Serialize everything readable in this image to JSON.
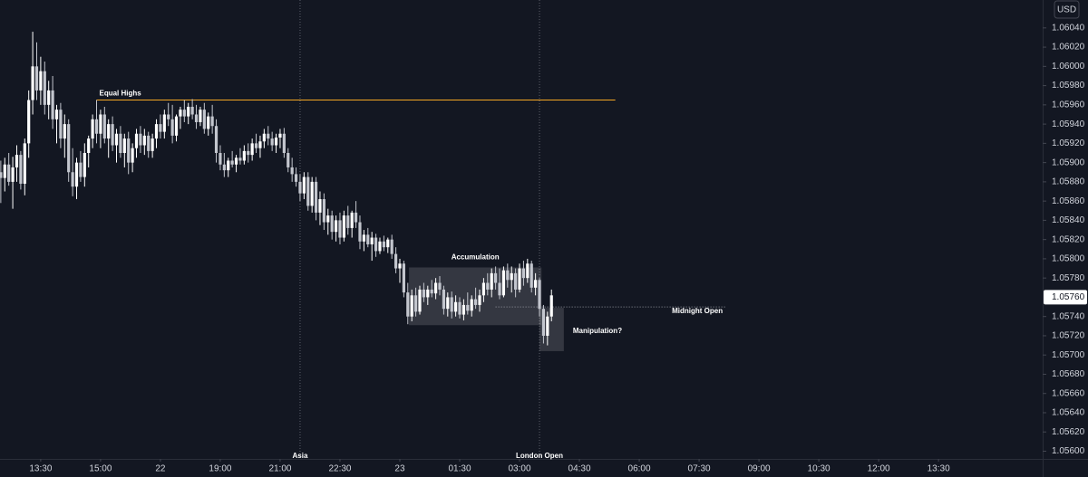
{
  "chart_data": {
    "type": "candlestick",
    "currency": "USD",
    "up_color": "#ffffff",
    "down_color": "#c3c6ce",
    "xlim": [
      -0.2,
      261.1
    ],
    "ylim": [
      1.05592,
      1.06069
    ],
    "xticks": [
      {
        "value": 10,
        "label": "13:30"
      },
      {
        "value": 25,
        "label": "15:00"
      },
      {
        "value": 40,
        "label": "22"
      },
      {
        "value": 55,
        "label": "19:00"
      },
      {
        "value": 70,
        "label": "21:00"
      },
      {
        "value": 85,
        "label": "22:30"
      },
      {
        "value": 100,
        "label": "23"
      },
      {
        "value": 115,
        "label": "01:30"
      },
      {
        "value": 130,
        "label": "03:00"
      },
      {
        "value": 145,
        "label": "04:30"
      },
      {
        "value": 160,
        "label": "06:00"
      },
      {
        "value": 175,
        "label": "07:30"
      },
      {
        "value": 190,
        "label": "09:00"
      },
      {
        "value": 205,
        "label": "10:30"
      },
      {
        "value": 220,
        "label": "12:00"
      },
      {
        "value": 235,
        "label": "13:30"
      }
    ],
    "yticks": [
      {
        "value": 1.0604,
        "label": "1.06040"
      },
      {
        "value": 1.0602,
        "label": "1.06020"
      },
      {
        "value": 1.06,
        "label": "1.06000"
      },
      {
        "value": 1.0598,
        "label": "1.05980"
      },
      {
        "value": 1.0596,
        "label": "1.05960"
      },
      {
        "value": 1.0594,
        "label": "1.05940"
      },
      {
        "value": 1.0592,
        "label": "1.05920"
      },
      {
        "value": 1.059,
        "label": "1.05900"
      },
      {
        "value": 1.0588,
        "label": "1.05880"
      },
      {
        "value": 1.0586,
        "label": "1.05860"
      },
      {
        "value": 1.0584,
        "label": "1.05840"
      },
      {
        "value": 1.0582,
        "label": "1.05820"
      },
      {
        "value": 1.058,
        "label": "1.05800"
      },
      {
        "value": 1.0578,
        "label": "1.05780"
      },
      {
        "value": 1.0574,
        "label": "1.05740"
      },
      {
        "value": 1.0572,
        "label": "1.05720"
      },
      {
        "value": 1.057,
        "label": "1.05700"
      },
      {
        "value": 1.0568,
        "label": "1.05680"
      },
      {
        "value": 1.0566,
        "label": "1.05660"
      },
      {
        "value": 1.0564,
        "label": "1.05640"
      },
      {
        "value": 1.0562,
        "label": "1.05620"
      },
      {
        "value": 1.056,
        "label": "1.05600"
      }
    ],
    "last_price": {
      "value": 1.0576,
      "label": "1.05760"
    },
    "annotations": [
      {
        "text": "Equal Highs",
        "shape": "line",
        "x": [
          24,
          154
        ],
        "y": 1.05965,
        "color": "#f5a623"
      },
      {
        "text": "Asia",
        "shape": "vline",
        "x": 75,
        "color": "#5d606b"
      },
      {
        "text": "London Open",
        "shape": "vline",
        "x": 135,
        "color": "#5d606b"
      },
      {
        "text": "Accumulation",
        "shape": "box",
        "x": [
          102.3,
          135.5
        ],
        "y": [
          1.05731,
          1.05791
        ],
        "color": "#ffffff"
      },
      {
        "text": "Manipulation?",
        "shape": "box",
        "x": [
          135,
          141.1
        ],
        "y": [
          1.05704,
          1.05749
        ],
        "color": "#ffffff"
      },
      {
        "text": "Midnight Open",
        "shape": "dotted-line",
        "x": [
          124,
          181.6
        ],
        "y": 1.0575,
        "color": "#9598a1"
      }
    ],
    "candles": [
      [
        1.0589,
        1.05902,
        1.05858,
        1.05884
      ],
      [
        1.05884,
        1.05905,
        1.0587,
        1.05898
      ],
      [
        1.05898,
        1.0591,
        1.05876,
        1.0588
      ],
      [
        1.0588,
        1.05906,
        1.05852,
        1.05895
      ],
      [
        1.05895,
        1.05918,
        1.0588,
        1.05908
      ],
      [
        1.05908,
        1.05912,
        1.05872,
        1.05878
      ],
      [
        1.05878,
        1.05925,
        1.05866,
        1.0592
      ],
      [
        1.0592,
        1.05975,
        1.05905,
        1.05965
      ],
      [
        1.05965,
        1.06036,
        1.0595,
        1.06
      ],
      [
        1.06,
        1.06025,
        1.05965,
        1.05975
      ],
      [
        1.05975,
        1.0601,
        1.0596,
        1.05995
      ],
      [
        1.05995,
        1.06005,
        1.0595,
        1.0596
      ],
      [
        1.0596,
        1.05985,
        1.05945,
        1.05975
      ],
      [
        1.05975,
        1.0599,
        1.05935,
        1.05945
      ],
      [
        1.05945,
        1.0596,
        1.0592,
        1.05955
      ],
      [
        1.05955,
        1.05962,
        1.05915,
        1.05925
      ],
      [
        1.05925,
        1.0595,
        1.05905,
        1.0594
      ],
      [
        1.0594,
        1.05945,
        1.0588,
        1.0589
      ],
      [
        1.0589,
        1.05915,
        1.05865,
        1.05875
      ],
      [
        1.05875,
        1.05905,
        1.05862,
        1.059
      ],
      [
        1.059,
        1.05912,
        1.0588,
        1.05885
      ],
      [
        1.05885,
        1.0592,
        1.05875,
        1.0591
      ],
      [
        1.0591,
        1.05928,
        1.05895,
        1.05925
      ],
      [
        1.05925,
        1.0595,
        1.05915,
        1.05945
      ],
      [
        1.05945,
        1.05965,
        1.0592,
        1.0593
      ],
      [
        1.0593,
        1.05955,
        1.05915,
        1.0595
      ],
      [
        1.0595,
        1.05958,
        1.0592,
        1.05925
      ],
      [
        1.05925,
        1.05945,
        1.05905,
        1.0594
      ],
      [
        1.0594,
        1.05948,
        1.05912,
        1.05918
      ],
      [
        1.05918,
        1.05935,
        1.059,
        1.0593
      ],
      [
        1.0593,
        1.05938,
        1.05905,
        1.0591
      ],
      [
        1.0591,
        1.0593,
        1.05895,
        1.05925
      ],
      [
        1.05925,
        1.05932,
        1.05888,
        1.059
      ],
      [
        1.059,
        1.0592,
        1.0589,
        1.05915
      ],
      [
        1.05915,
        1.05935,
        1.05905,
        1.0593
      ],
      [
        1.0593,
        1.05938,
        1.0591,
        1.05918
      ],
      [
        1.05918,
        1.05935,
        1.05908,
        1.05928
      ],
      [
        1.05928,
        1.05932,
        1.05905,
        1.05912
      ],
      [
        1.05912,
        1.0593,
        1.05905,
        1.05925
      ],
      [
        1.05925,
        1.05945,
        1.05915,
        1.0594
      ],
      [
        1.0594,
        1.0595,
        1.05925,
        1.05932
      ],
      [
        1.05932,
        1.05955,
        1.05925,
        1.0595
      ],
      [
        1.0595,
        1.05962,
        1.05938,
        1.05945
      ],
      [
        1.05945,
        1.0596,
        1.0592,
        1.05928
      ],
      [
        1.05928,
        1.0595,
        1.05922,
        1.05948
      ],
      [
        1.05948,
        1.05958,
        1.05935,
        1.05955
      ],
      [
        1.05955,
        1.05965,
        1.05942,
        1.05948
      ],
      [
        1.05948,
        1.05962,
        1.0594,
        1.05958
      ],
      [
        1.05958,
        1.05966,
        1.05945,
        1.0595
      ],
      [
        1.0595,
        1.0596,
        1.05935,
        1.05942
      ],
      [
        1.05942,
        1.05958,
        1.05938,
        1.05955
      ],
      [
        1.05955,
        1.05962,
        1.0593,
        1.05935
      ],
      [
        1.05935,
        1.05952,
        1.05928,
        1.05948
      ],
      [
        1.05948,
        1.0596,
        1.0593,
        1.05938
      ],
      [
        1.05938,
        1.05945,
        1.059,
        1.0591
      ],
      [
        1.0591,
        1.05918,
        1.05892,
        1.05898
      ],
      [
        1.05898,
        1.0591,
        1.05885,
        1.05892
      ],
      [
        1.05892,
        1.05905,
        1.05885,
        1.05902
      ],
      [
        1.05902,
        1.05912,
        1.05895,
        1.05898
      ],
      [
        1.05898,
        1.05908,
        1.0589,
        1.05905
      ],
      [
        1.05905,
        1.05915,
        1.05898,
        1.05902
      ],
      [
        1.05902,
        1.05918,
        1.05898,
        1.05912
      ],
      [
        1.05912,
        1.0592,
        1.059,
        1.05908
      ],
      [
        1.05908,
        1.05925,
        1.05902,
        1.0592
      ],
      [
        1.0592,
        1.0593,
        1.0591,
        1.05915
      ],
      [
        1.05915,
        1.05928,
        1.05905,
        1.05922
      ],
      [
        1.05922,
        1.05935,
        1.05915,
        1.0593
      ],
      [
        1.0593,
        1.05938,
        1.05918,
        1.05925
      ],
      [
        1.05925,
        1.05932,
        1.05912,
        1.05918
      ],
      [
        1.05918,
        1.0593,
        1.0591,
        1.05926
      ],
      [
        1.05926,
        1.05935,
        1.05915,
        1.0593
      ],
      [
        1.0593,
        1.05936,
        1.05905,
        1.0591
      ],
      [
        1.0591,
        1.05915,
        1.0589,
        1.05895
      ],
      [
        1.05895,
        1.05905,
        1.0588,
        1.05888
      ],
      [
        1.05888,
        1.05895,
        1.05875,
        1.0588
      ],
      [
        1.0588,
        1.05888,
        1.0586,
        1.05868
      ],
      [
        1.05868,
        1.0589,
        1.05862,
        1.05885
      ],
      [
        1.05885,
        1.0589,
        1.0585,
        1.05855
      ],
      [
        1.05855,
        1.05885,
        1.05848,
        1.0588
      ],
      [
        1.0588,
        1.05885,
        1.0584,
        1.05848
      ],
      [
        1.05848,
        1.0587,
        1.05835,
        1.05862
      ],
      [
        1.05862,
        1.05868,
        1.0583,
        1.05838
      ],
      [
        1.05838,
        1.05852,
        1.05825,
        1.05845
      ],
      [
        1.05845,
        1.0585,
        1.0582,
        1.05828
      ],
      [
        1.05828,
        1.05845,
        1.05818,
        1.0584
      ],
      [
        1.0584,
        1.05848,
        1.05815,
        1.05822
      ],
      [
        1.05822,
        1.0585,
        1.05818,
        1.05845
      ],
      [
        1.05845,
        1.05855,
        1.05825,
        1.05832
      ],
      [
        1.05832,
        1.0585,
        1.05822,
        1.05848
      ],
      [
        1.05848,
        1.0586,
        1.05832,
        1.05838
      ],
      [
        1.05838,
        1.05845,
        1.0581,
        1.05818
      ],
      [
        1.05818,
        1.0583,
        1.05808,
        1.05825
      ],
      [
        1.05825,
        1.05832,
        1.05812,
        1.05815
      ],
      [
        1.05815,
        1.05828,
        1.05798,
        1.05822
      ],
      [
        1.05822,
        1.05826,
        1.05802,
        1.05808
      ],
      [
        1.05808,
        1.05822,
        1.05805,
        1.05818
      ],
      [
        1.05818,
        1.05824,
        1.05808,
        1.05812
      ],
      [
        1.05812,
        1.05822,
        1.05806,
        1.0582
      ],
      [
        1.0582,
        1.05825,
        1.058,
        1.05805
      ],
      [
        1.05805,
        1.05812,
        1.05785,
        1.0579
      ],
      [
        1.0579,
        1.058,
        1.05775,
        1.05795
      ],
      [
        1.05795,
        1.05798,
        1.0576,
        1.05765
      ],
      [
        1.05765,
        1.05775,
        1.05732,
        1.0574
      ],
      [
        1.0574,
        1.05768,
        1.05735,
        1.05762
      ],
      [
        1.05762,
        1.0577,
        1.0574,
        1.05745
      ],
      [
        1.05745,
        1.05772,
        1.05742,
        1.05768
      ],
      [
        1.05768,
        1.05775,
        1.05755,
        1.0576
      ],
      [
        1.0576,
        1.05772,
        1.05752,
        1.05768
      ],
      [
        1.05768,
        1.05778,
        1.0576,
        1.05764
      ],
      [
        1.05764,
        1.0578,
        1.05758,
        1.05775
      ],
      [
        1.05775,
        1.05782,
        1.05762,
        1.05768
      ],
      [
        1.05768,
        1.05772,
        1.05742,
        1.05748
      ],
      [
        1.05748,
        1.05765,
        1.0574,
        1.0576
      ],
      [
        1.0576,
        1.05766,
        1.05738,
        1.05745
      ],
      [
        1.05745,
        1.05762,
        1.0574,
        1.05755
      ],
      [
        1.05755,
        1.0576,
        1.05738,
        1.05742
      ],
      [
        1.05742,
        1.05758,
        1.05736,
        1.05752
      ],
      [
        1.05752,
        1.05765,
        1.05742,
        1.05746
      ],
      [
        1.05746,
        1.05762,
        1.0574,
        1.05758
      ],
      [
        1.05758,
        1.0577,
        1.05748,
        1.05752
      ],
      [
        1.05752,
        1.05768,
        1.05745,
        1.05762
      ],
      [
        1.05762,
        1.0578,
        1.05755,
        1.05775
      ],
      [
        1.05775,
        1.05785,
        1.05762,
        1.05768
      ],
      [
        1.05768,
        1.0579,
        1.0576,
        1.05785
      ],
      [
        1.05785,
        1.05792,
        1.05768,
        1.05775
      ],
      [
        1.05775,
        1.0579,
        1.05758,
        1.05762
      ],
      [
        1.05762,
        1.05792,
        1.0576,
        1.05788
      ],
      [
        1.05788,
        1.05795,
        1.0577,
        1.05778
      ],
      [
        1.05778,
        1.05792,
        1.05765,
        1.05785
      ],
      [
        1.05785,
        1.0579,
        1.0576,
        1.05768
      ],
      [
        1.05768,
        1.05795,
        1.05765,
        1.0579
      ],
      [
        1.0579,
        1.05798,
        1.05772,
        1.0578
      ],
      [
        1.0578,
        1.058,
        1.05775,
        1.05795
      ],
      [
        1.05795,
        1.05798,
        1.05765,
        1.0577
      ],
      [
        1.0577,
        1.05785,
        1.05762,
        1.05778
      ],
      [
        1.05778,
        1.0578,
        1.0574,
        1.05748
      ],
      [
        1.05748,
        1.05752,
        1.05712,
        1.0572
      ],
      [
        1.0572,
        1.05745,
        1.0571,
        1.0574
      ],
      [
        1.0574,
        1.05768,
        1.05735,
        1.05762
      ]
    ]
  }
}
